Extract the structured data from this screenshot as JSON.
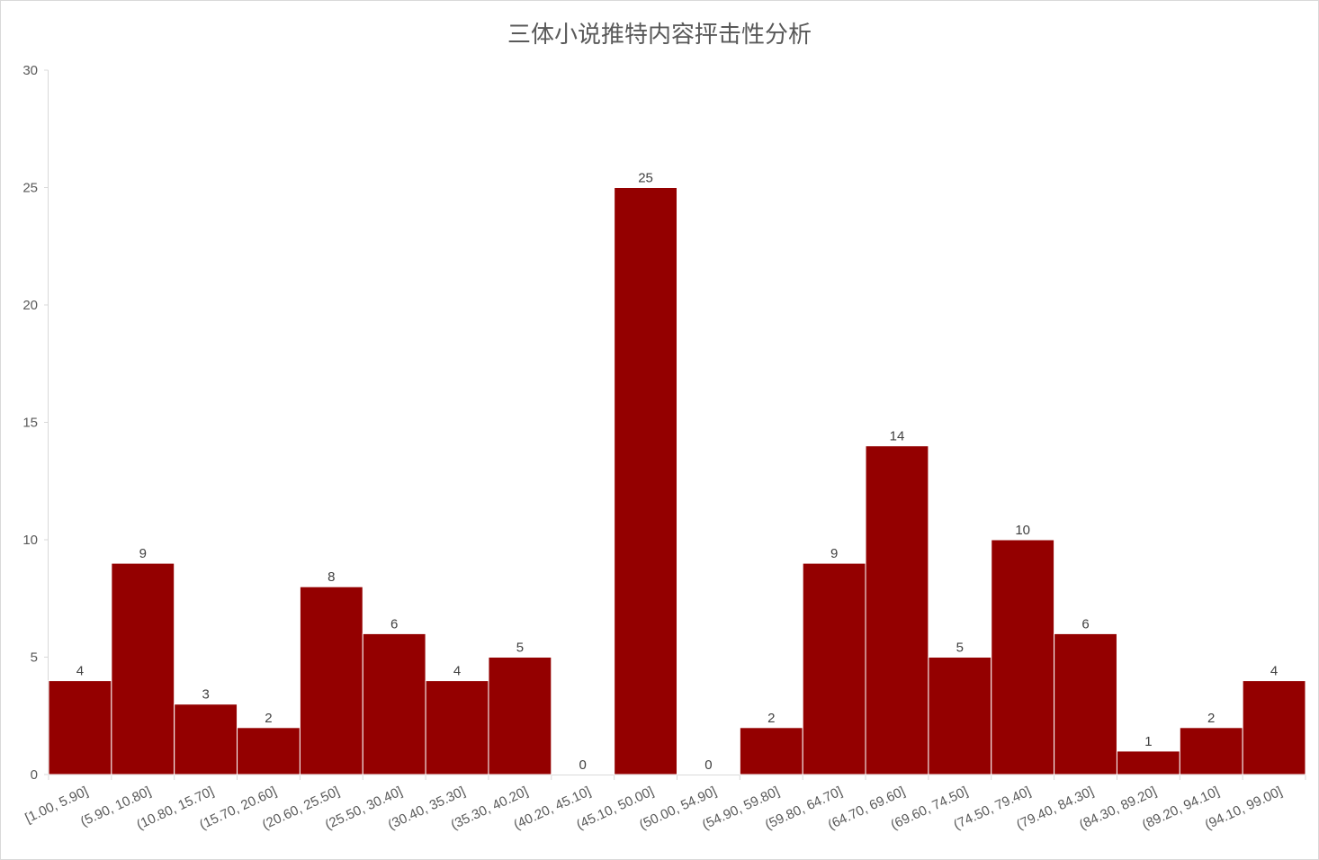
{
  "chart_data": {
    "type": "bar",
    "title": "三体小说推特内容抨击性分析",
    "xlabel": "",
    "ylabel": "",
    "ylim": [
      0,
      30
    ],
    "yticks": [
      "0",
      "5",
      "10",
      "15",
      "20",
      "25",
      "30"
    ],
    "categories": [
      "[1.00, 5.90]",
      "(5.90, 10.80]",
      "(10.80, 15.70]",
      "(15.70, 20.60]",
      "(20.60, 25.50]",
      "(25.50, 30.40]",
      "(30.40, 35.30]",
      "(35.30, 40.20]",
      "(40.20, 45.10]",
      "(45.10, 50.00]",
      "(50.00, 54.90]",
      "(54.90, 59.80]",
      "(59.80, 64.70]",
      "(64.70, 69.60]",
      "(69.60, 74.50]",
      "(74.50, 79.40]",
      "(79.40, 84.30]",
      "(84.30, 89.20]",
      "(89.20, 94.10]",
      "(94.10, 99.00]"
    ],
    "values": [
      4,
      9,
      3,
      2,
      8,
      6,
      4,
      5,
      0,
      25,
      0,
      2,
      9,
      14,
      5,
      10,
      6,
      1,
      2,
      4
    ],
    "bar_color": "#940000",
    "grid": false,
    "legend": "none"
  }
}
